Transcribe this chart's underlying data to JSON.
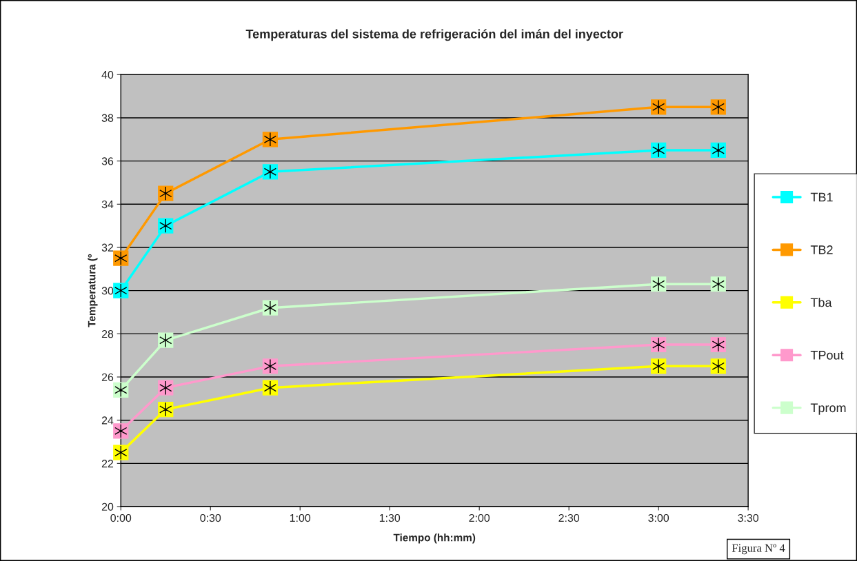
{
  "chart_data": {
    "type": "line",
    "title": "Temperaturas del sistema de refrigeración del imán del inyector",
    "xlabel": "Tiempo (hh:mm)",
    "ylabel": "Temperatura (º",
    "x": [
      0,
      0.25,
      0.8333,
      3.0,
      3.3333
    ],
    "series": [
      {
        "name": "TB1",
        "color": "#00ffff",
        "values": [
          30,
          33,
          35.5,
          36.5,
          36.5
        ]
      },
      {
        "name": "TB2",
        "color": "#ff9900",
        "values": [
          31.5,
          34.5,
          37,
          38.5,
          38.5
        ]
      },
      {
        "name": "Tba",
        "color": "#ffff00",
        "values": [
          22.5,
          24.5,
          25.5,
          26.5,
          26.5
        ]
      },
      {
        "name": "TPout",
        "color": "#ff99cc",
        "values": [
          23.5,
          25.5,
          26.5,
          27.5,
          27.5
        ]
      },
      {
        "name": "Tprom",
        "color": "#ccffcc",
        "values": [
          25.4,
          27.7,
          29.2,
          30.3,
          30.3
        ]
      }
    ],
    "xlim": [
      0,
      3.5
    ],
    "xticks": [
      {
        "value": 0,
        "label": "0:00"
      },
      {
        "value": 0.5,
        "label": "0:30"
      },
      {
        "value": 1,
        "label": "1:00"
      },
      {
        "value": 1.5,
        "label": "1:30"
      },
      {
        "value": 2,
        "label": "2:00"
      },
      {
        "value": 2.5,
        "label": "2:30"
      },
      {
        "value": 3,
        "label": "3:00"
      },
      {
        "value": 3.5,
        "label": "3:30"
      }
    ],
    "ylim": [
      20,
      40
    ],
    "yticks": [
      20,
      22,
      24,
      26,
      28,
      30,
      32,
      34,
      36,
      38,
      40
    ],
    "grid": "y",
    "legend": "right",
    "marker": "square",
    "line_style": "solid",
    "annotations": [
      "Figura Nº 4"
    ]
  }
}
